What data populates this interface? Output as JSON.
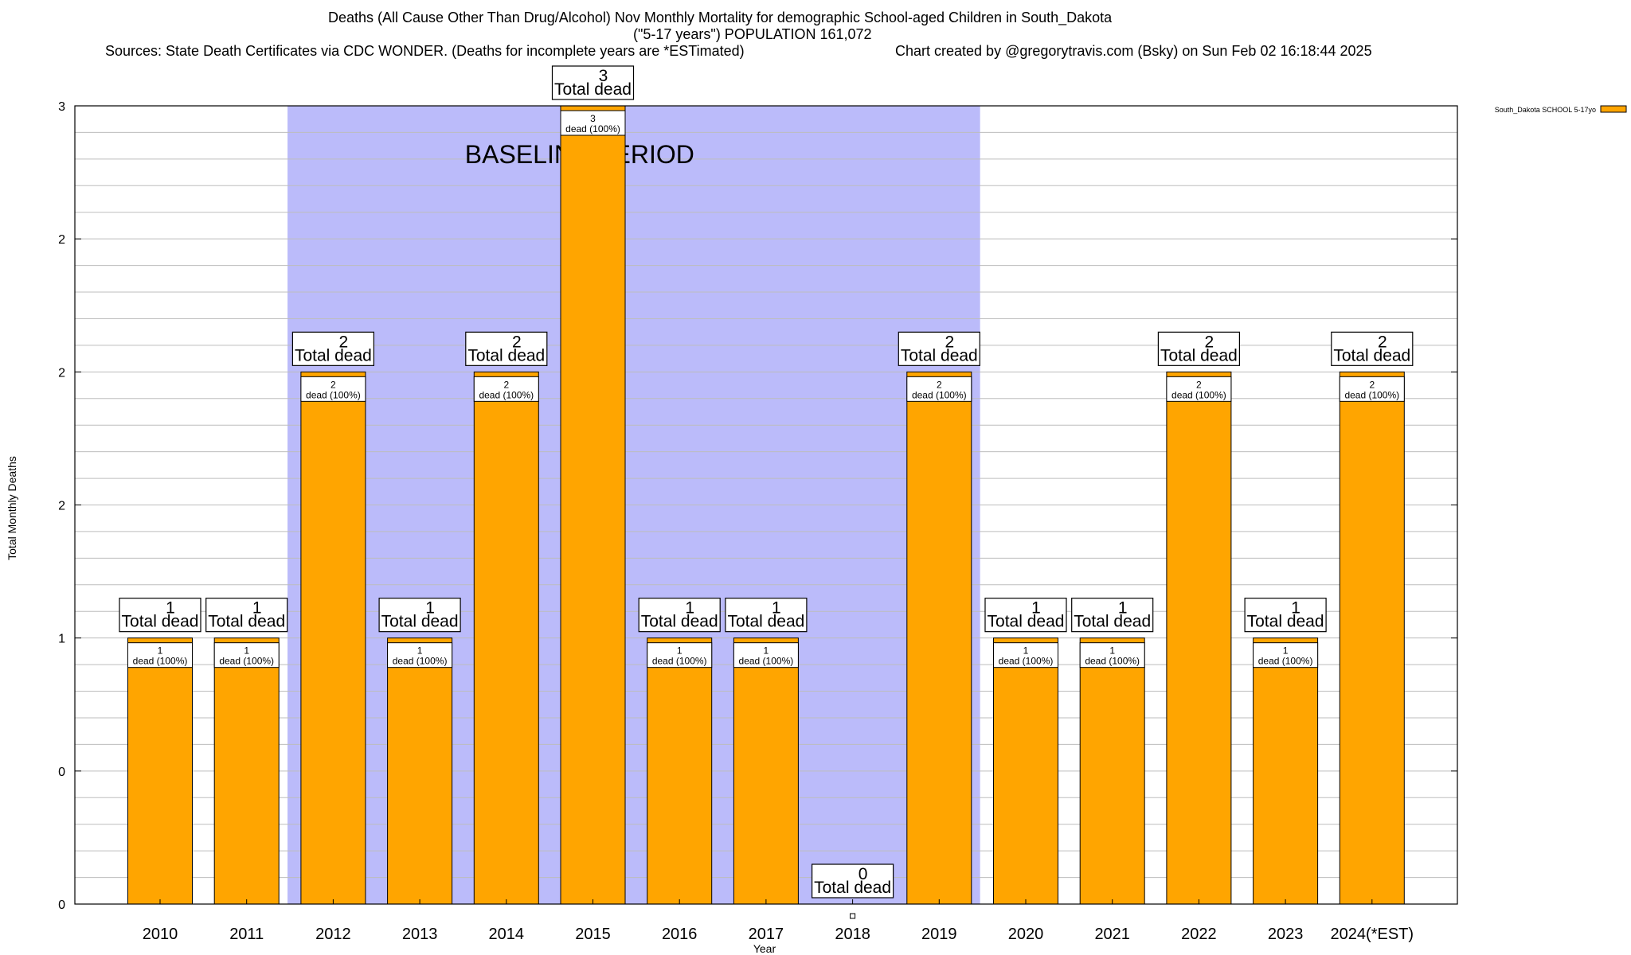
{
  "header": {
    "title_line1": "Deaths (All Cause Other Than Drug/Alcohol) Nov Monthly Mortality for demographic School-aged Children in South_Dakota",
    "title_line2": "(\"5-17 years\") POPULATION 161,072",
    "sources": "Sources: State Death Certificates via CDC WONDER. (Deaths for incomplete years are *ESTimated)",
    "credit": "Chart created by @gregorytravis.com (Bsky) on Sun Feb 02 16:18:44 2025"
  },
  "chart_data": {
    "type": "bar",
    "categories": [
      "2010",
      "2011",
      "2012",
      "2013",
      "2014",
      "2015",
      "2016",
      "2017",
      "2018",
      "2019",
      "2020",
      "2021",
      "2022",
      "2023",
      "2024(*EST)"
    ],
    "series": [
      {
        "name": "South_Dakota SCHOOL 5-17yo",
        "values": [
          1,
          1,
          2,
          1,
          2,
          3,
          1,
          1,
          0,
          2,
          1,
          1,
          2,
          1,
          2
        ],
        "color": "#ffa500"
      }
    ],
    "xlabel": "Year",
    "ylabel": "Total Monthly Deaths",
    "ylim": [
      0,
      3
    ],
    "ytick_labels": [
      "0",
      "0",
      "1",
      "2",
      "2",
      "2",
      "3"
    ],
    "grid": true,
    "legend": "top-right",
    "total_label": "Total dead",
    "inner_label_suffix": "dead (100%)",
    "baseline": {
      "label": "BASELINE PERIOD",
      "from": "2012",
      "to": "2019",
      "color": "#bbbbfa"
    },
    "bar_top_color": "#ffa500"
  }
}
